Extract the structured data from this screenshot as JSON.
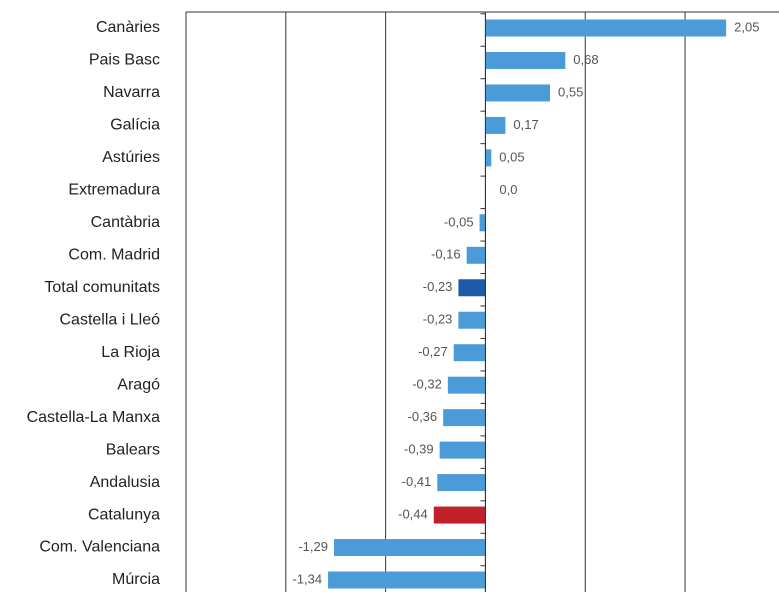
{
  "chart_data": {
    "type": "bar",
    "orientation": "horizontal",
    "categories": [
      "Canàries",
      "Pais Basc",
      "Navarra",
      "Galícia",
      "Astúries",
      "Extremadura",
      "Cantàbria",
      "Com. Madrid",
      "Total comunitats",
      "Castella i Lleó",
      "La Rioja ",
      "Aragó",
      "Castella-La Manxa",
      "Balears",
      "Andalusia",
      "Catalunya",
      "Com. Valenciana",
      "Múrcia"
    ],
    "values": [
      2.05,
      0.68,
      0.55,
      0.17,
      0.05,
      0.0,
      -0.05,
      -0.16,
      -0.23,
      -0.23,
      -0.27,
      -0.32,
      -0.36,
      -0.39,
      -0.41,
      -0.44,
      -1.29,
      -1.34
    ],
    "value_labels": [
      "2,05",
      "0,68",
      "0,55",
      "0,17",
      "0,05",
      "0,0",
      "-0,05",
      "-0,16",
      "-0,23",
      "-0,23",
      "-0,27",
      "-0,32",
      "-0,36",
      "-0,39",
      "-0,41",
      "-0,44",
      "-1,29",
      "-1,34"
    ],
    "colors": [
      "#4a9bd8",
      "#4a9bd8",
      "#4a9bd8",
      "#4a9bd8",
      "#4a9bd8",
      "#4a9bd8",
      "#4a9bd8",
      "#4a9bd8",
      "#1f5aa8",
      "#4a9bd8",
      "#4a9bd8",
      "#4a9bd8",
      "#4a9bd8",
      "#4a9bd8",
      "#4a9bd8",
      "#c0202a",
      "#4a9bd8",
      "#4a9bd8"
    ],
    "xlim": [
      -2.55,
      2.5
    ],
    "xticks": [
      -2.55,
      -1.7,
      -0.85,
      0,
      0.85,
      1.7
    ],
    "grid": true
  }
}
